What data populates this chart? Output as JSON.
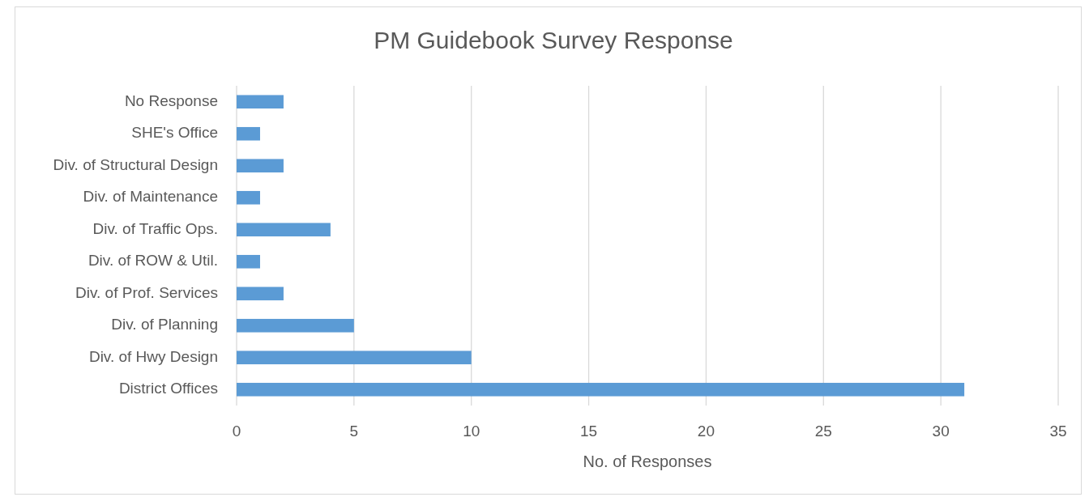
{
  "chart_data": {
    "type": "bar",
    "orientation": "horizontal",
    "title": "PM Guidebook Survey Response",
    "xlabel": "No. of Responses",
    "categories": [
      "No Response",
      "SHE's Office",
      "Div. of Structural Design",
      "Div. of Maintenance",
      "Div. of Traffic Ops.",
      "Div. of ROW & Util.",
      "Div. of Prof. Services",
      "Div. of Planning",
      "Div. of Hwy Design",
      "District Offices"
    ],
    "values": [
      2,
      1,
      2,
      1,
      4,
      1,
      2,
      5,
      10,
      31
    ],
    "color": "#5b9bd5",
    "xlim": [
      0,
      35
    ],
    "xticks": [
      0,
      5,
      10,
      15,
      20,
      25,
      30,
      35
    ],
    "grid": "x"
  }
}
